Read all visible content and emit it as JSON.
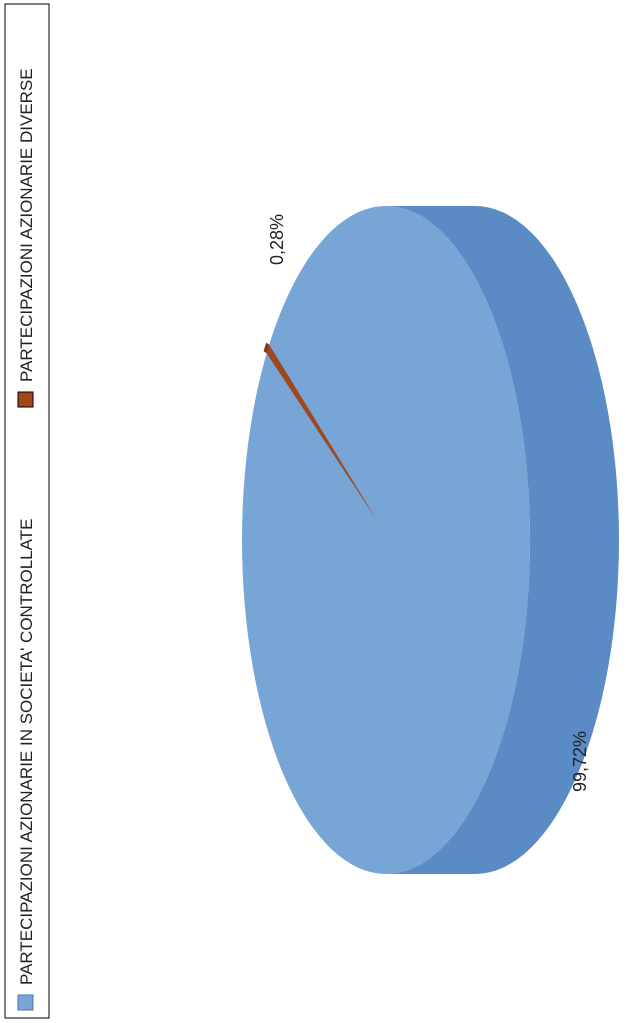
{
  "chart_data": {
    "type": "pie",
    "style": "3d",
    "orientation": "rotated-90-ccw",
    "legend_position": "left",
    "categories": [
      "PARTECIPAZIONI AZIONARIE IN SOCIETA' CONTROLLATE",
      "PARTECIPAZIONI AZIONARIE DIVERSE"
    ],
    "values": [
      99.72,
      0.28
    ],
    "labels": [
      "99,72%",
      "0,28%"
    ],
    "colors": {
      "slice_1_top": "#77A5D6",
      "slice_1_side": "#5B8BC4",
      "slice_2_top": "#A0471C",
      "slice_2_side": "#7E3512",
      "legend_border": "#000000"
    }
  }
}
